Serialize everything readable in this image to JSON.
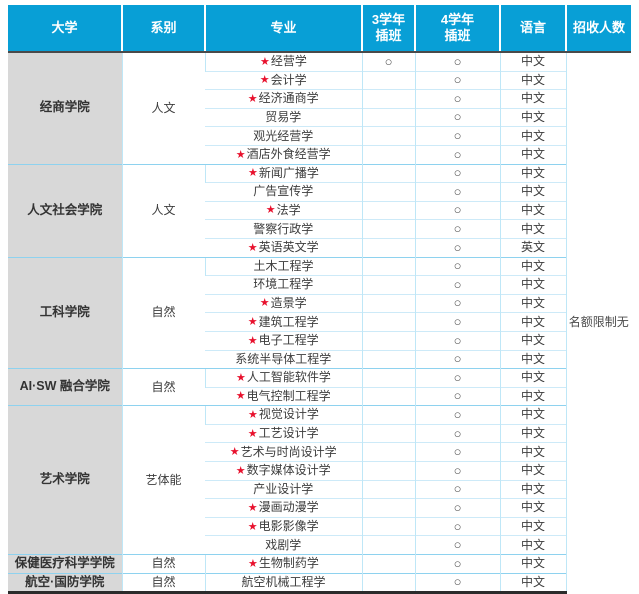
{
  "header": {
    "columns": [
      "大学",
      "系别",
      "专业",
      "3学年\n插班",
      "4学年\n插班",
      "语言",
      "招收人数"
    ]
  },
  "marks": {
    "star": "★",
    "circle": "○"
  },
  "quota_note": "名额限制无",
  "colors": {
    "header_bg": "#089fd6",
    "college_bg": "#d8d8d8",
    "row_line": "#cdeaf8",
    "group_line": "#8ed2ef",
    "star_red": "#e8112d",
    "bottom_border": "#2b2b2b"
  },
  "groups": [
    {
      "college": "经商学院",
      "division": "人文",
      "majors": [
        {
          "name": "经营学",
          "star": true,
          "y3": true,
          "y4": true,
          "lang": "中文"
        },
        {
          "name": "会计学",
          "star": true,
          "y3": false,
          "y4": true,
          "lang": "中文"
        },
        {
          "name": "经济通商学",
          "star": true,
          "y3": false,
          "y4": true,
          "lang": "中文"
        },
        {
          "name": "贸易学",
          "star": false,
          "y3": false,
          "y4": true,
          "lang": "中文"
        },
        {
          "name": "观光经营学",
          "star": false,
          "y3": false,
          "y4": true,
          "lang": "中文"
        },
        {
          "name": "酒店外食经营学",
          "star": true,
          "y3": false,
          "y4": true,
          "lang": "中文"
        }
      ]
    },
    {
      "college": "人文社会学院",
      "division": "人文",
      "majors": [
        {
          "name": "新闻广播学",
          "star": true,
          "y3": false,
          "y4": true,
          "lang": "中文"
        },
        {
          "name": "广告宣传学",
          "star": false,
          "y3": false,
          "y4": true,
          "lang": "中文"
        },
        {
          "name": "法学",
          "star": true,
          "y3": false,
          "y4": true,
          "lang": "中文"
        },
        {
          "name": "警察行政学",
          "star": false,
          "y3": false,
          "y4": true,
          "lang": "中文"
        },
        {
          "name": "英语英文学",
          "star": true,
          "y3": false,
          "y4": true,
          "lang": "英文"
        }
      ]
    },
    {
      "college": "工科学院",
      "division": "自然",
      "majors": [
        {
          "name": "土木工程学",
          "star": false,
          "y3": false,
          "y4": true,
          "lang": "中文"
        },
        {
          "name": "环境工程学",
          "star": false,
          "y3": false,
          "y4": true,
          "lang": "中文"
        },
        {
          "name": "造景学",
          "star": true,
          "y3": false,
          "y4": true,
          "lang": "中文"
        },
        {
          "name": "建筑工程学",
          "star": true,
          "y3": false,
          "y4": true,
          "lang": "中文"
        },
        {
          "name": "电子工程学",
          "star": true,
          "y3": false,
          "y4": true,
          "lang": "中文"
        },
        {
          "name": "系统半导体工程学",
          "star": false,
          "y3": false,
          "y4": true,
          "lang": "中文"
        }
      ]
    },
    {
      "college": "AI·SW 融合学院",
      "division": "自然",
      "majors": [
        {
          "name": "人工智能软件学",
          "star": true,
          "y3": false,
          "y4": true,
          "lang": "中文"
        },
        {
          "name": "电气控制工程学",
          "star": true,
          "y3": false,
          "y4": true,
          "lang": "中文"
        }
      ]
    },
    {
      "college": "艺术学院",
      "division": "艺体能",
      "majors": [
        {
          "name": "视觉设计学",
          "star": true,
          "y3": false,
          "y4": true,
          "lang": "中文"
        },
        {
          "name": "工艺设计学",
          "star": true,
          "y3": false,
          "y4": true,
          "lang": "中文"
        },
        {
          "name": "艺术与时尚设计学",
          "star": true,
          "y3": false,
          "y4": true,
          "lang": "中文"
        },
        {
          "name": "数字媒体设计学",
          "star": true,
          "y3": false,
          "y4": true,
          "lang": "中文"
        },
        {
          "name": "产业设计学",
          "star": false,
          "y3": false,
          "y4": true,
          "lang": "中文"
        },
        {
          "name": "漫画动漫学",
          "star": true,
          "y3": false,
          "y4": true,
          "lang": "中文"
        },
        {
          "name": "电影影像学",
          "star": true,
          "y3": false,
          "y4": true,
          "lang": "中文"
        },
        {
          "name": "戏剧学",
          "star": false,
          "y3": false,
          "y4": true,
          "lang": "中文"
        }
      ]
    },
    {
      "college": "保健医疗科学学院",
      "division": "自然",
      "majors": [
        {
          "name": "生物制药学",
          "star": true,
          "y3": false,
          "y4": true,
          "lang": "中文"
        }
      ]
    },
    {
      "college": "航空·国防学院",
      "division": "自然",
      "majors": [
        {
          "name": "航空机械工程学",
          "star": false,
          "y3": false,
          "y4": true,
          "lang": "中文"
        }
      ]
    }
  ]
}
